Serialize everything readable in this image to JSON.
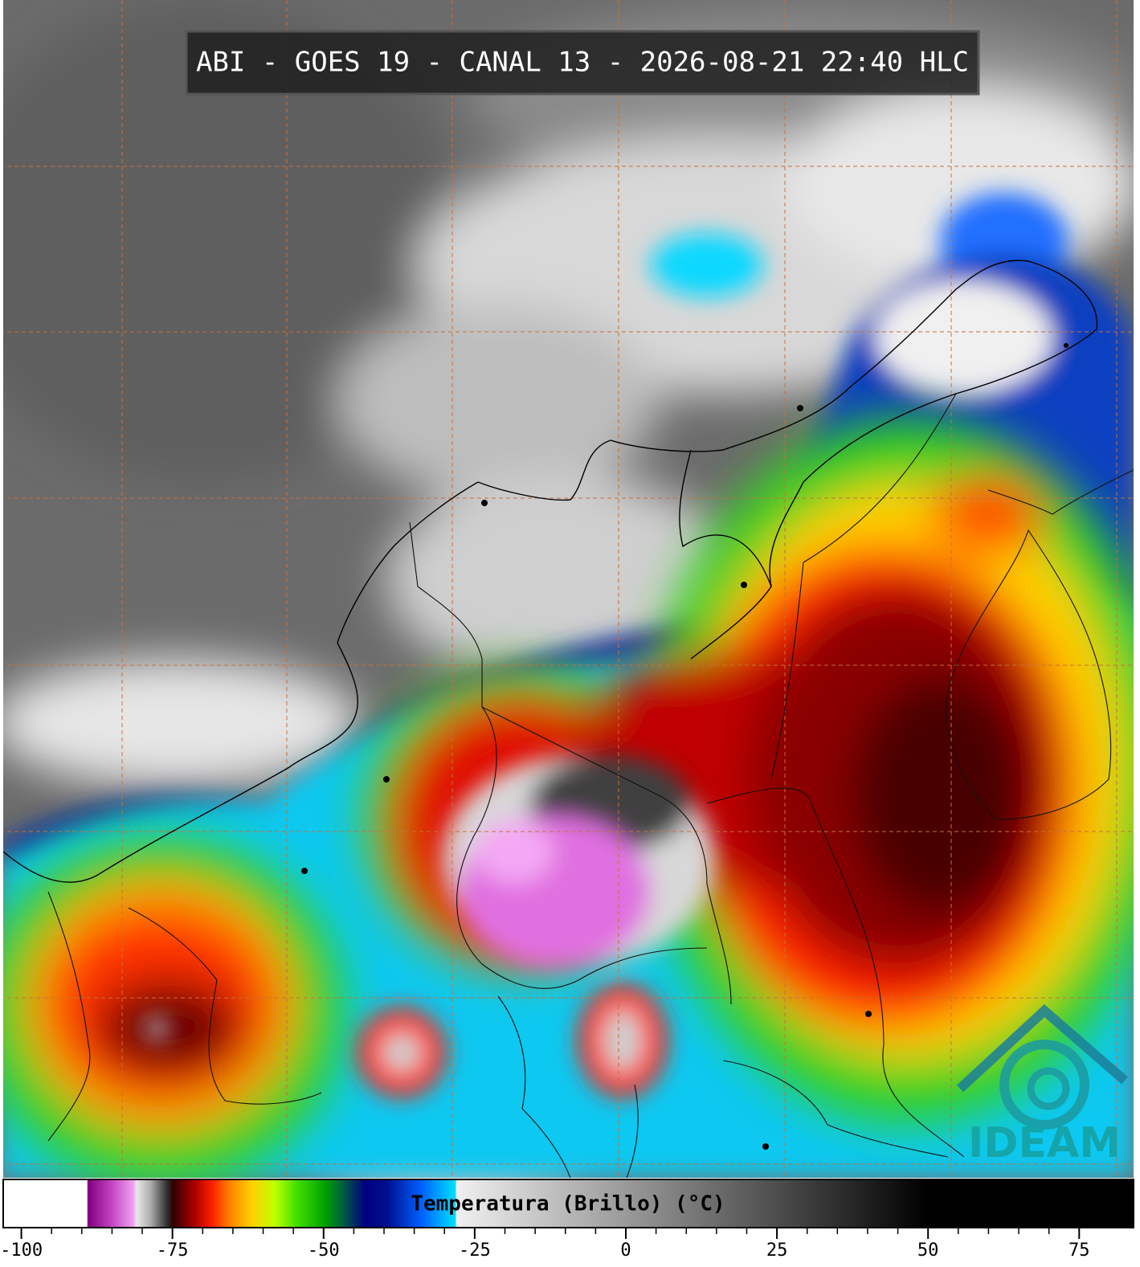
{
  "header": {
    "title": "ABI - GOES 19 - CANAL 13 - 2026-08-21 22:40 HLC"
  },
  "colorbar": {
    "label": "Temperatura (Brillo) (°C)",
    "xlim": [
      -103,
      84
    ],
    "xticks": [
      -100,
      -75,
      -50,
      -25,
      0,
      25,
      50,
      75
    ]
  },
  "logo": {
    "text": "IDEAM"
  }
}
